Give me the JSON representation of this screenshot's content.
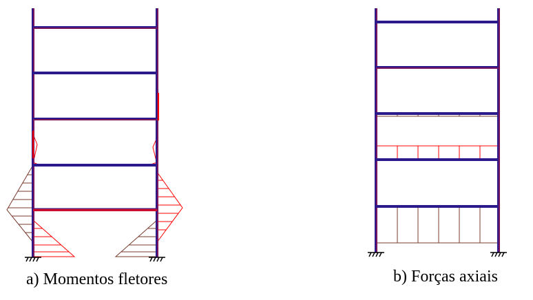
{
  "captions": {
    "a": "a)   Momentos fletores",
    "b": "b) Forças axiais"
  },
  "colors": {
    "frame": "#2a1a8c",
    "frame_highlight": "#c8102e",
    "diagram_red": "#ff0000",
    "diagram_brown": "#7a3b2e",
    "text": "#000000"
  },
  "diagrams": [
    {
      "id": "moments",
      "stories": 5,
      "support": "fixed"
    },
    {
      "id": "axial",
      "stories": 5,
      "support": "fixed"
    }
  ]
}
